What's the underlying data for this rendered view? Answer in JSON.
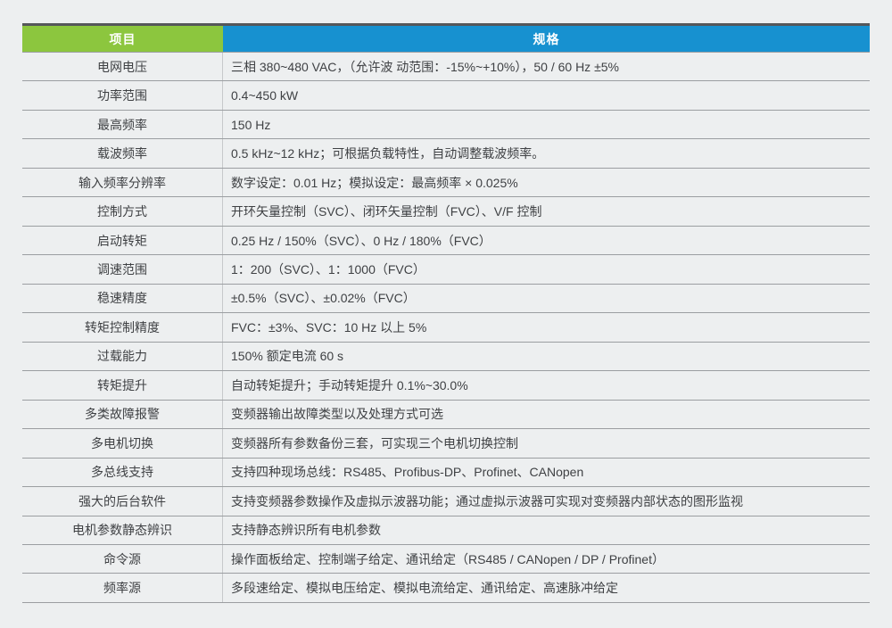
{
  "page": {
    "background": "#edeff0"
  },
  "table": {
    "header": {
      "item_label": "项目",
      "spec_label": "规格",
      "item_bg": "#8cc63e",
      "spec_bg": "#1791d0",
      "top_border_color": "#55575a"
    },
    "rows": [
      {
        "item": "电网电压",
        "spec": "三相 380~480 VAC，（允许波 动范围：-15%~+10%），50 / 60 Hz ±5%"
      },
      {
        "item": "功率范围",
        "spec": "0.4~450 kW"
      },
      {
        "item": "最高频率",
        "spec": "150 Hz"
      },
      {
        "item": "载波频率",
        "spec": "0.5 kHz~12 kHz；可根据负载特性，自动调整载波频率。"
      },
      {
        "item": "输入频率分辨率",
        "spec": "数字设定：0.01 Hz；模拟设定：最高频率 × 0.025%"
      },
      {
        "item": "控制方式",
        "spec": "开环矢量控制（SVC）、闭环矢量控制（FVC）、V/F 控制"
      },
      {
        "item": "启动转矩",
        "spec": "0.25 Hz / 150%（SVC）、0 Hz / 180%（FVC）"
      },
      {
        "item": "调速范围",
        "spec": "1：200（SVC）、1：1000（FVC）"
      },
      {
        "item": "稳速精度",
        "spec": "±0.5%（SVC）、±0.02%（FVC）"
      },
      {
        "item": "转矩控制精度",
        "spec": "FVC：±3%、SVC：10 Hz 以上 5%"
      },
      {
        "item": "过载能力",
        "spec": "150% 额定电流 60 s"
      },
      {
        "item": "转矩提升",
        "spec": "自动转矩提升；手动转矩提升 0.1%~30.0%"
      },
      {
        "item": "多类故障报警",
        "spec": "变频器输出故障类型以及处理方式可选"
      },
      {
        "item": "多电机切换",
        "spec": "变频器所有参数备份三套，可实现三个电机切换控制"
      },
      {
        "item": "多总线支持",
        "spec": "支持四种现场总线：RS485、Profibus-DP、Profinet、CANopen"
      },
      {
        "item": "强大的后台软件",
        "spec": "支持变频器参数操作及虚拟示波器功能；通过虚拟示波器可实现对变频器内部状态的图形监视"
      },
      {
        "item": "电机参数静态辨识",
        "spec": "支持静态辨识所有电机参数"
      },
      {
        "item": "命令源",
        "spec": "操作面板给定、控制端子给定、通讯给定（RS485 / CANopen / DP / Profinet）"
      },
      {
        "item": "频率源",
        "spec": "多段速给定、模拟电压给定、模拟电流给定、通讯给定、高速脉冲给定"
      }
    ]
  }
}
